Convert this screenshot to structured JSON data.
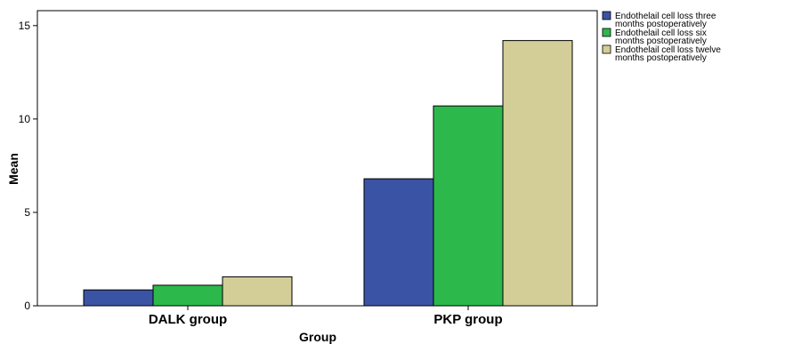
{
  "chart_data": {
    "type": "bar",
    "xlabel": "Group",
    "ylabel": "Mean",
    "categories": [
      "DALK group",
      "PKP group"
    ],
    "ylim": [
      0,
      15.8
    ],
    "yticks": [
      0,
      5,
      10,
      15
    ],
    "grid": false,
    "legend_position": "top-right",
    "series": [
      {
        "name": "Endothelail cell loss three months postoperatively",
        "legend_lines": [
          "Endothelail cell loss three",
          "months postoperatively"
        ],
        "values": [
          0.85,
          6.8
        ],
        "color": "#3a53a4"
      },
      {
        "name": "Endothelail cell loss six months postoperatively",
        "legend_lines": [
          "Endothelail cell loss six",
          "months postoperatively"
        ],
        "values": [
          1.1,
          10.7
        ],
        "color": "#2db84b"
      },
      {
        "name": "Endothelail cell loss twelve months postoperatively",
        "legend_lines": [
          "Endothelail cell loss twelve",
          "months postoperatively"
        ],
        "values": [
          1.55,
          14.2
        ],
        "color": "#d3ce97"
      }
    ]
  }
}
